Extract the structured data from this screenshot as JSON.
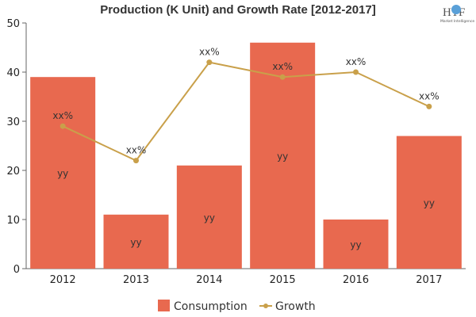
{
  "chart_data": {
    "type": "bar+line",
    "title": "Production (K Unit) and Growth Rate [2012-2017]",
    "categories": [
      "2012",
      "2013",
      "2014",
      "2015",
      "2016",
      "2017"
    ],
    "series": [
      {
        "name": "Consumption",
        "type": "bar",
        "values": [
          39,
          11,
          21,
          46,
          10,
          27
        ],
        "label": "yy",
        "color": "#e8694f"
      },
      {
        "name": "Growth",
        "type": "line",
        "values": [
          29,
          22,
          42,
          39,
          40,
          33
        ],
        "label": "xx%",
        "color": "#c9a04a"
      }
    ],
    "yticks": [
      0,
      10,
      20,
      30,
      40,
      50
    ],
    "ylim": [
      0,
      50
    ],
    "grid": false,
    "legend": "bottom"
  },
  "logo": {
    "text": "HTF",
    "subtext": "Market Intelligence"
  }
}
